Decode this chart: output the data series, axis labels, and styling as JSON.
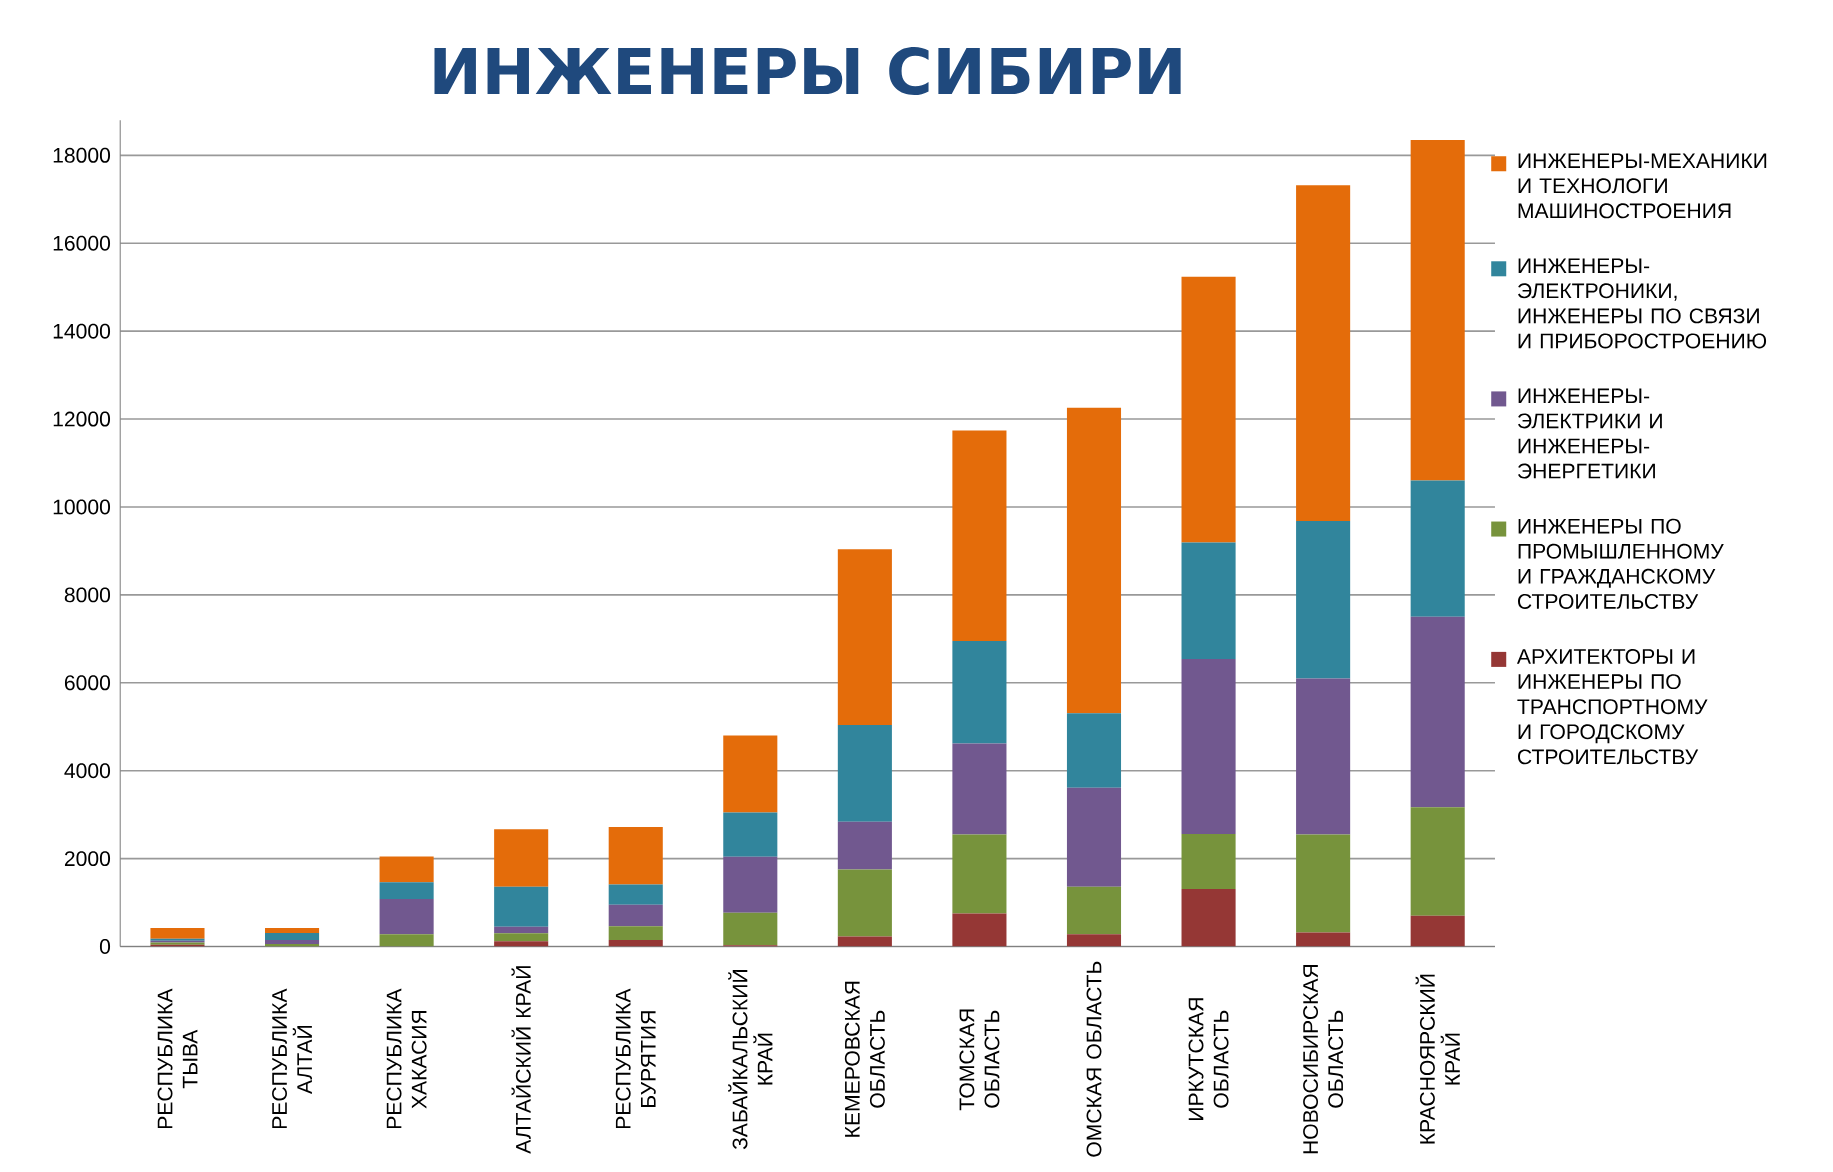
{
  "chart_data": {
    "type": "bar",
    "stacked": true,
    "title": "ИНЖЕНЕРЫ СИБИРИ",
    "categories": [
      "РЕСПУБЛИКА ТЫВА",
      "РЕСПУБЛИКА АЛТАЙ",
      "РЕСПУБЛИКА ХАКАСИЯ",
      "АЛТАЙСКИЙ КРАЙ",
      "РЕСПУБЛИКА БУРЯТИЯ",
      "ЗАБАЙКАЛЬСКИЙ КРАЙ",
      "КЕМЕРОВСКАЯ ОБЛАСТЬ",
      "ТОМСКАЯ ОБЛАСТЬ",
      "ОМСКАЯ ОБЛАСТЬ",
      "ИРКУТСКАЯ ОБЛАСТЬ",
      "НОВОСИБИРСКАЯ ОБЛАСТЬ",
      "КРАСНОЯРСКИЙ КРАЙ"
    ],
    "series": [
      {
        "name": "АРХИТЕКТОРЫ И ИНЖЕНЕРЫ ПО ТРАНСПОРТНОМУ И ГОРОДСКОМУ СТРОИТЕЛЬСТВУ",
        "color": "#953735",
        "values": [
          40,
          null,
          null,
          120,
          150,
          30,
          230,
          750,
          280,
          1310,
          320,
          700
        ]
      },
      {
        "name": "ИНЖЕНЕРЫ ПО ПРОМЫШЛЕННОМУ И ГРАЖДАНСКОМУ СТРОИТЕЛЬСТВУ",
        "color": "#77933c",
        "values": [
          50,
          60,
          280,
          180,
          310,
          740,
          1520,
          1800,
          1080,
          1250,
          2230,
          2470
        ]
      },
      {
        "name": "ИНЖЕНЕРЫ-ЭЛЕКТРИКИ И ИНЖЕНЕРЫ-ЭНЕРГЕТИКИ",
        "color": "#71588f",
        "values": [
          40,
          90,
          800,
          150,
          490,
          1270,
          1090,
          2070,
          2250,
          3980,
          3550,
          4330
        ]
      },
      {
        "name": "ИНЖЕНЕРЫ-ЭЛЕКТРОНИКИ, ИНЖЕНЕРЫ ПО СВЯЗИ И ПРИБОРОСТРОЕНИЮ",
        "color": "#31859c",
        "values": [
          50,
          160,
          380,
          910,
          460,
          1010,
          2200,
          2330,
          1700,
          2650,
          3580,
          3100
        ]
      },
      {
        "name": "ИНЖЕНЕРЫ-МЕХАНИКИ И ТЕХНОЛОГИ МАШИНОСТРОЕНИЯ",
        "color": "#e46c0a",
        "values": [
          240,
          110,
          590,
          1310,
          1310,
          1750,
          4000,
          4790,
          6950,
          6050,
          7640,
          7750
        ]
      }
    ],
    "ylim": [
      0,
      18800
    ],
    "yticks": [
      0,
      2000,
      4000,
      6000,
      8000,
      10000,
      12000,
      14000,
      16000,
      18000
    ],
    "grid": "y",
    "legend": "right"
  }
}
